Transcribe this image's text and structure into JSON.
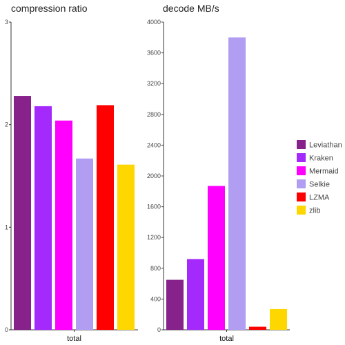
{
  "chart_data": [
    {
      "type": "bar",
      "title": "compression ratio",
      "categories": [
        "total"
      ],
      "ylim": [
        0,
        3
      ],
      "yticks": [
        0,
        1,
        2,
        3
      ],
      "series": [
        {
          "name": "Leviathan",
          "color": "#862289",
          "values": [
            2.28
          ]
        },
        {
          "name": "Kraken",
          "color": "#A42AFB",
          "values": [
            2.18
          ]
        },
        {
          "name": "Mermaid",
          "color": "#FF00FF",
          "values": [
            2.04
          ]
        },
        {
          "name": "Selkie",
          "color": "#B19EF2",
          "values": [
            1.67
          ]
        },
        {
          "name": "LZMA",
          "color": "#FF0000",
          "values": [
            2.19
          ]
        },
        {
          "name": "zlib",
          "color": "#FFD700",
          "values": [
            1.61
          ]
        }
      ]
    },
    {
      "type": "bar",
      "title": "decode MB/s",
      "categories": [
        "total"
      ],
      "ylim": [
        0,
        4000
      ],
      "yticks": [
        0,
        400,
        800,
        1200,
        1600,
        2000,
        2400,
        2800,
        3200,
        3600,
        4000
      ],
      "series": [
        {
          "name": "Leviathan",
          "color": "#862289",
          "values": [
            650
          ]
        },
        {
          "name": "Kraken",
          "color": "#A42AFB",
          "values": [
            920
          ]
        },
        {
          "name": "Mermaid",
          "color": "#FF00FF",
          "values": [
            1870
          ]
        },
        {
          "name": "Selkie",
          "color": "#B19EF2",
          "values": [
            3800
          ]
        },
        {
          "name": "LZMA",
          "color": "#FF0000",
          "values": [
            40
          ]
        },
        {
          "name": "zlib",
          "color": "#FFD700",
          "values": [
            270
          ]
        }
      ]
    }
  ],
  "legend": {
    "placement": "right",
    "items": [
      {
        "name": "Leviathan",
        "color": "#862289"
      },
      {
        "name": "Kraken",
        "color": "#A42AFB"
      },
      {
        "name": "Mermaid",
        "color": "#FF00FF"
      },
      {
        "name": "Selkie",
        "color": "#B19EF2"
      },
      {
        "name": "LZMA",
        "color": "#FF0000"
      },
      {
        "name": "zlib",
        "color": "#FFD700"
      }
    ]
  }
}
